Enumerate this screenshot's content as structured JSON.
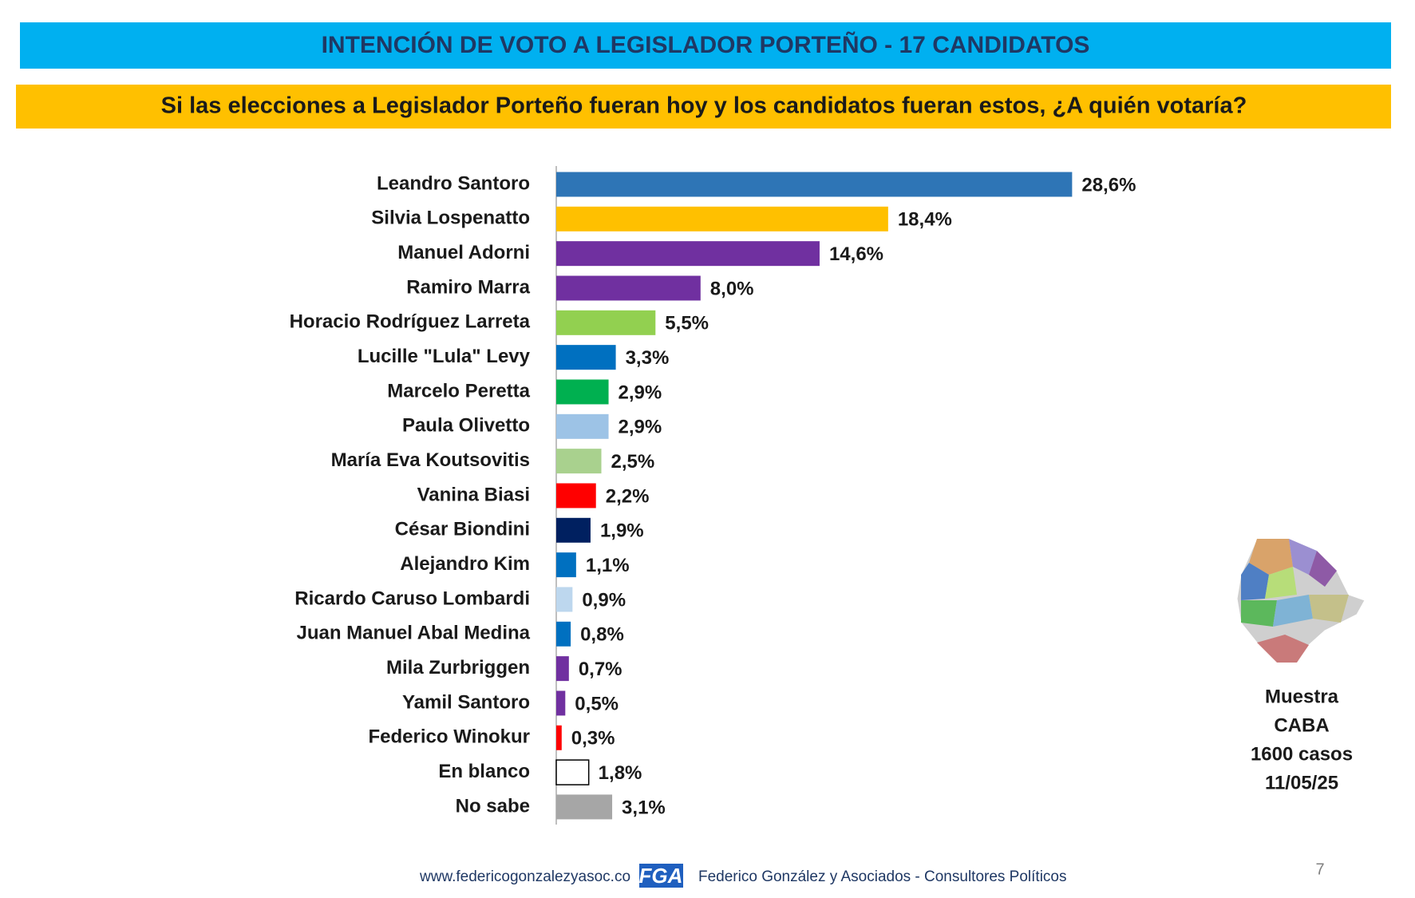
{
  "chart_data": {
    "type": "bar",
    "orientation": "horizontal",
    "title": "INTENCIÓN DE VOTO A LEGISLADOR PORTEÑO - 17 CANDIDATOS",
    "subtitle": "Si las elecciones a Legislador Porteño fueran hoy y los candidatos fueran estos, ¿A quién votaría?",
    "categories": [
      "Leandro Santoro",
      "Silvia Lospenatto",
      "Manuel Adorni",
      "Ramiro Marra",
      "Horacio Rodríguez Larreta",
      "Lucille \"Lula\" Levy",
      "Marcelo Peretta",
      "Paula Olivetto",
      "María Eva Koutsovitis",
      "Vanina Biasi",
      "César Biondini",
      "Alejandro Kim",
      "Ricardo Caruso Lombardi",
      "Juan Manuel Abal Medina",
      "Mila Zurbriggen",
      "Yamil Santoro",
      "Federico Winokur",
      "En blanco",
      "No sabe"
    ],
    "values": [
      28.6,
      18.4,
      14.6,
      8.0,
      5.5,
      3.3,
      2.9,
      2.9,
      2.5,
      2.2,
      1.9,
      1.1,
      0.9,
      0.8,
      0.7,
      0.5,
      0.3,
      1.8,
      3.1
    ],
    "value_labels": [
      "28,6%",
      "18,4%",
      "14,6%",
      "8,0%",
      "5,5%",
      "3,3%",
      "2,9%",
      "2,9%",
      "2,5%",
      "2,2%",
      "1,9%",
      "1,1%",
      "0,9%",
      "0,8%",
      "0,7%",
      "0,5%",
      "0,3%",
      "1,8%",
      "3,1%"
    ],
    "colors": [
      "#2e75b6",
      "#ffc000",
      "#7030a0",
      "#7030a0",
      "#92d050",
      "#0070c0",
      "#00b050",
      "#9dc3e6",
      "#a9d18e",
      "#ff0000",
      "#002060",
      "#0070c0",
      "#bdd7ee",
      "#0070c0",
      "#7030a0",
      "#7030a0",
      "#ff0000",
      "#ffffff",
      "#a6a6a6"
    ],
    "xlim": [
      0,
      40
    ]
  },
  "sample": [
    "Muestra",
    "CABA",
    "1600 casos",
    "11/05/25"
  ],
  "footer": {
    "website": "www.federicogonzalezyasoc.co",
    "logo": "FGA",
    "company": "Federico González y Asociados - Consultores Políticos",
    "page": "7"
  }
}
